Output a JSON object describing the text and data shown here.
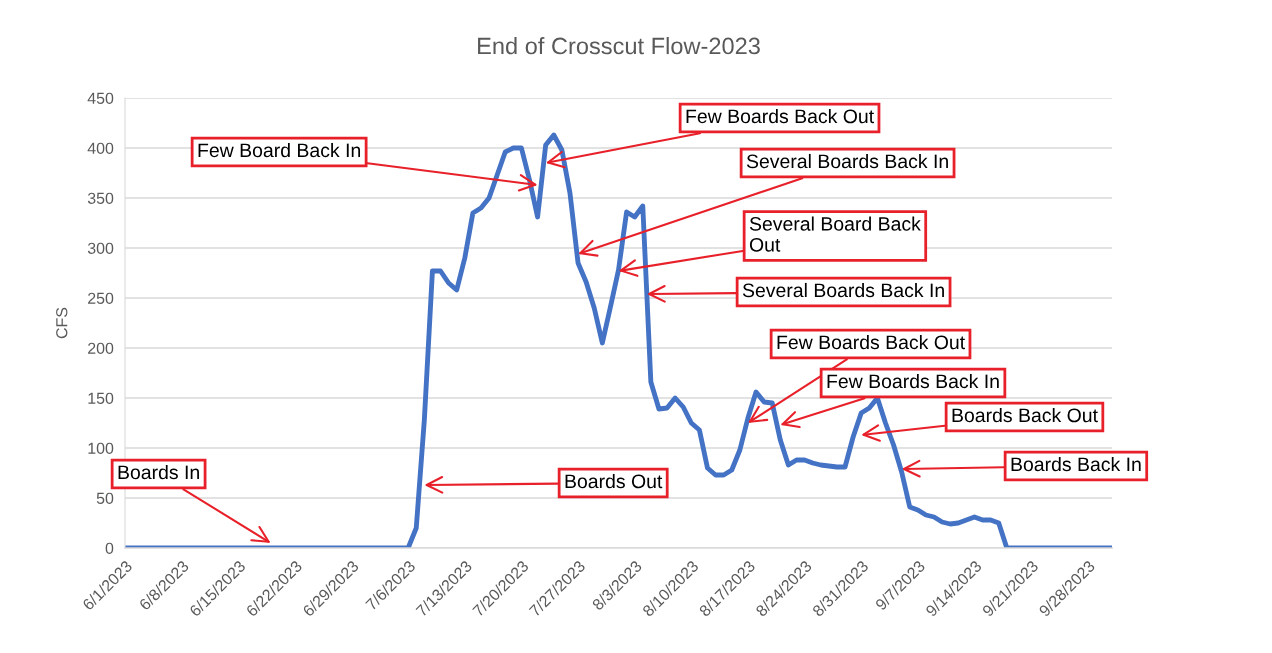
{
  "chart_data": {
    "type": "line",
    "title": "End of Crosscut Flow-2023",
    "ylabel": "CFS",
    "x": [
      "2023-06-01",
      "2023-07-06",
      "2023-07-07",
      "2023-07-08",
      "2023-07-09",
      "2023-07-10",
      "2023-07-11",
      "2023-07-12",
      "2023-07-13",
      "2023-07-14",
      "2023-07-15",
      "2023-07-16",
      "2023-07-17",
      "2023-07-18",
      "2023-07-19",
      "2023-07-20",
      "2023-07-21",
      "2023-07-22",
      "2023-07-23",
      "2023-07-24",
      "2023-07-25",
      "2023-07-26",
      "2023-07-27",
      "2023-07-28",
      "2023-07-29",
      "2023-07-30",
      "2023-07-31",
      "2023-08-01",
      "2023-08-02",
      "2023-08-03",
      "2023-08-04",
      "2023-08-05",
      "2023-08-06",
      "2023-08-07",
      "2023-08-08",
      "2023-08-09",
      "2023-08-10",
      "2023-08-11",
      "2023-08-12",
      "2023-08-13",
      "2023-08-14",
      "2023-08-15",
      "2023-08-16",
      "2023-08-17",
      "2023-08-18",
      "2023-08-19",
      "2023-08-20",
      "2023-08-21",
      "2023-08-22",
      "2023-08-23",
      "2023-08-24",
      "2023-08-25",
      "2023-08-26",
      "2023-08-27",
      "2023-08-28",
      "2023-08-29",
      "2023-08-30",
      "2023-08-31",
      "2023-09-01",
      "2023-09-02",
      "2023-09-03",
      "2023-09-04",
      "2023-09-05",
      "2023-09-06",
      "2023-09-07",
      "2023-09-08",
      "2023-09-09",
      "2023-09-10",
      "2023-09-11",
      "2023-09-12",
      "2023-09-13",
      "2023-09-14",
      "2023-09-15",
      "2023-09-16",
      "2023-09-17",
      "2023-09-18",
      "2023-10-01"
    ],
    "series": [
      {
        "color": "#4472c4",
        "values": [
          0,
          0,
          20,
          128,
          277,
          277,
          265,
          258,
          290,
          335,
          340,
          350,
          373,
          396,
          400,
          400,
          368,
          331,
          403,
          413,
          398,
          355,
          285,
          266,
          240,
          205,
          241,
          278,
          336,
          331,
          342,
          166,
          139,
          140,
          150,
          141,
          125,
          118,
          80,
          73,
          73,
          78,
          98,
          130,
          156,
          146,
          145,
          108,
          83,
          88,
          88,
          85,
          83,
          82,
          81,
          81,
          111,
          135,
          140,
          150,
          125,
          103,
          76,
          41,
          38,
          33,
          31,
          26,
          24,
          25,
          28,
          31,
          28,
          28,
          25,
          0,
          0
        ]
      }
    ],
    "xlim": [
      "2023-06-01",
      "2023-10-01"
    ],
    "xticks": [
      {
        "value": "2023-06-01",
        "label": "6/1/2023"
      },
      {
        "value": "2023-06-08",
        "label": "6/8/2023"
      },
      {
        "value": "2023-06-15",
        "label": "6/15/2023"
      },
      {
        "value": "2023-06-22",
        "label": "6/22/2023"
      },
      {
        "value": "2023-06-29",
        "label": "6/29/2023"
      },
      {
        "value": "2023-07-06",
        "label": "7/6/2023"
      },
      {
        "value": "2023-07-13",
        "label": "7/13/2023"
      },
      {
        "value": "2023-07-20",
        "label": "7/20/2023"
      },
      {
        "value": "2023-07-27",
        "label": "7/27/2023"
      },
      {
        "value": "2023-08-03",
        "label": "8/3/2023"
      },
      {
        "value": "2023-08-10",
        "label": "8/10/2023"
      },
      {
        "value": "2023-08-17",
        "label": "8/17/2023"
      },
      {
        "value": "2023-08-24",
        "label": "8/24/2023"
      },
      {
        "value": "2023-08-31",
        "label": "8/31/2023"
      },
      {
        "value": "2023-09-07",
        "label": "9/7/2023"
      },
      {
        "value": "2023-09-14",
        "label": "9/14/2023"
      },
      {
        "value": "2023-09-21",
        "label": "9/21/2023"
      },
      {
        "value": "2023-09-28",
        "label": "9/28/2023"
      }
    ],
    "ylim": [
      0,
      450
    ],
    "yticks": [
      0,
      50,
      100,
      150,
      200,
      250,
      300,
      350,
      400,
      450
    ],
    "grid": "y",
    "marker": "none",
    "line_style": "solid",
    "annotations": [
      {
        "text": "Few Board Back In",
        "x": "2023-07-22",
        "y": 363
      },
      {
        "text": "Few Boards Back Out",
        "x": "2023-07-23",
        "y": 385
      },
      {
        "text": "Several Boards Back In",
        "x": "2023-07-27",
        "y": 294
      },
      {
        "text": "Several Board Back\nOut",
        "x": "2023-08-01",
        "y": 277
      },
      {
        "text": "Several Boards Back In",
        "x": "2023-08-04T12:00",
        "y": 254
      },
      {
        "text": "Few Boards Back Out",
        "x": "2023-08-17",
        "y": 125
      },
      {
        "text": "Few Boards Back In",
        "x": "2023-08-21",
        "y": 123
      },
      {
        "text": "Boards Back Out",
        "x": "2023-08-31",
        "y": 113
      },
      {
        "text": "Boards Back In",
        "x": "2023-09-05",
        "y": 79
      },
      {
        "text": "Boards Out",
        "x": "2023-07-08",
        "y": 63
      },
      {
        "text": "Boards In",
        "x": "2023-06-19",
        "y": 5
      }
    ]
  }
}
